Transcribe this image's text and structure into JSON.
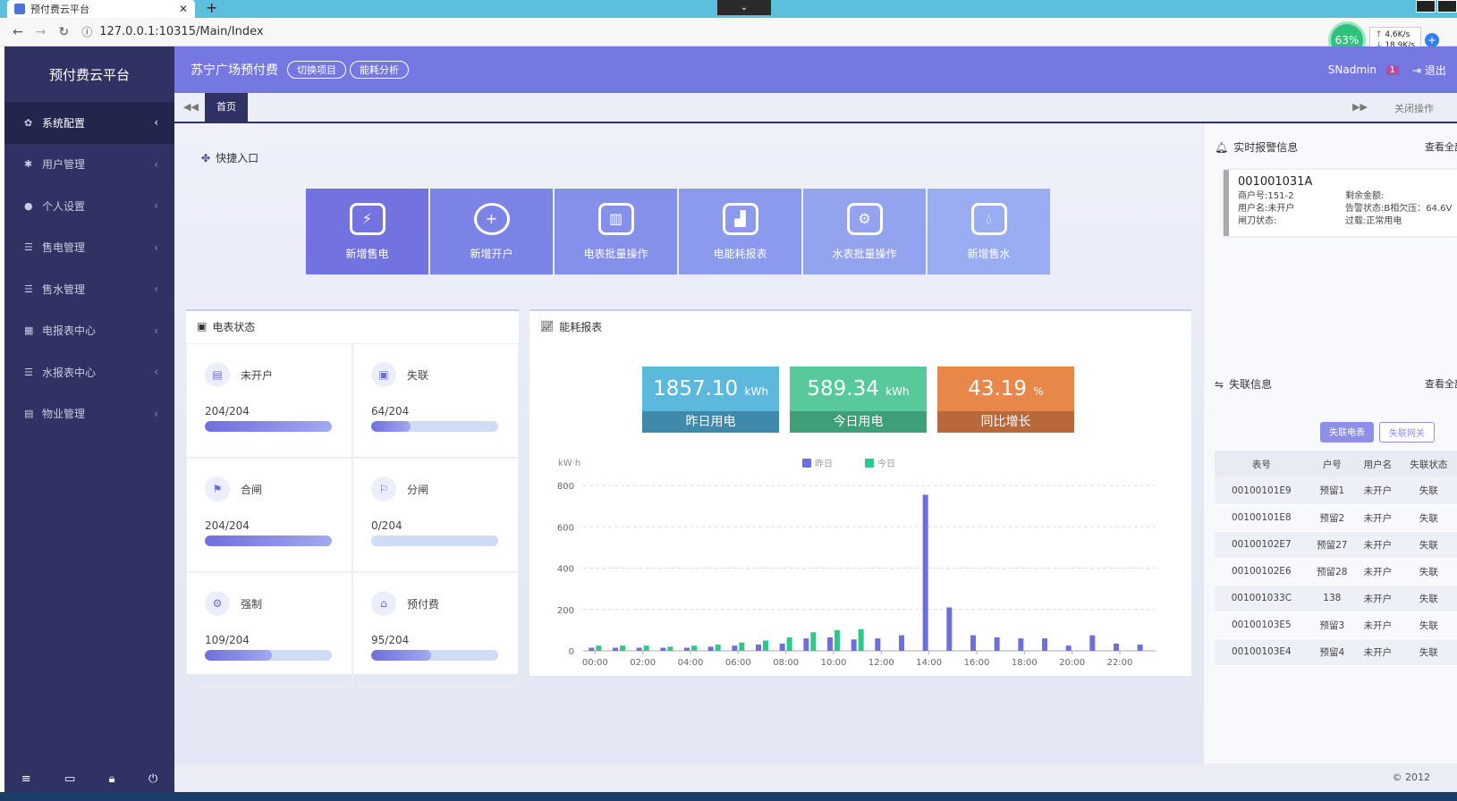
{
  "browser": {
    "tab_title": "预付费云平台",
    "url": "127.0.0.1:10315/Main/Index",
    "net_percent": "63%",
    "up_speed": "4.6K/s",
    "down_speed": "18.9K/s"
  },
  "sidebar": {
    "brand": "预付费云平台",
    "items": [
      {
        "label": "系统配置",
        "icon": "gear-icon"
      },
      {
        "label": "用户管理",
        "icon": "asterisk-icon"
      },
      {
        "label": "个人设置",
        "icon": "user-icon"
      },
      {
        "label": "售电管理",
        "icon": "list-icon"
      },
      {
        "label": "售水管理",
        "icon": "list-icon"
      },
      {
        "label": "电报表中心",
        "icon": "grid-icon"
      },
      {
        "label": "水报表中心",
        "icon": "list-icon"
      },
      {
        "label": "物业管理",
        "icon": "calendar-icon"
      }
    ]
  },
  "header": {
    "project": "苏宁广场预付费",
    "switch_btn": "切换项目",
    "energy_btn": "能耗分析",
    "user": "SNadmin",
    "badge": "1",
    "logout": "退出"
  },
  "pagetabs": {
    "home": "首页",
    "close_ops": "关闭操作"
  },
  "quick": {
    "title": "快捷入口",
    "tiles": [
      {
        "label": "新增售电",
        "color": "#7273e0"
      },
      {
        "label": "新增开户",
        "color": "#7b83e6"
      },
      {
        "label": "电表批量操作",
        "color": "#8590ea"
      },
      {
        "label": "电能耗报表",
        "color": "#8c9aee"
      },
      {
        "label": "水表批量操作",
        "color": "#93a3f0"
      },
      {
        "label": "新增售水",
        "color": "#9aacf2"
      }
    ]
  },
  "meter_status": {
    "title": "电表状态",
    "cells": [
      {
        "name": "未开户",
        "value": "204/204",
        "ratio": 1.0
      },
      {
        "name": "失联",
        "value": "64/204",
        "ratio": 0.31
      },
      {
        "name": "合闸",
        "value": "204/204",
        "ratio": 1.0
      },
      {
        "name": "分闸",
        "value": "0/204",
        "ratio": 0.0
      },
      {
        "name": "强制",
        "value": "109/204",
        "ratio": 0.53
      },
      {
        "name": "预付费",
        "value": "95/204",
        "ratio": 0.47
      }
    ]
  },
  "energy": {
    "title": "能耗报表",
    "kpis": [
      {
        "value": "1857.10",
        "unit": "kWh",
        "label": "昨日用电",
        "color": "#5cb8dc",
        "bar": "#3f8aab"
      },
      {
        "value": "589.34",
        "unit": "kWh",
        "label": "今日用电",
        "color": "#57c99b",
        "bar": "#3e9f78"
      },
      {
        "value": "43.19",
        "unit": "%",
        "label": "同比增长",
        "color": "#e8874a",
        "bar": "#b8683a"
      }
    ]
  },
  "chart_data": {
    "type": "bar",
    "ylabel": "kW·h",
    "ylim": [
      0,
      800
    ],
    "yticks": [
      "0",
      "200",
      "400",
      "600",
      "800"
    ],
    "categories": [
      "00:00",
      "01:00",
      "02:00",
      "03:00",
      "04:00",
      "05:00",
      "06:00",
      "07:00",
      "08:00",
      "09:00",
      "10:00",
      "11:00",
      "12:00",
      "13:00",
      "14:00",
      "15:00",
      "16:00",
      "17:00",
      "18:00",
      "19:00",
      "20:00",
      "21:00",
      "22:00",
      "23:00"
    ],
    "xticks": [
      "00:00",
      "02:00",
      "04:00",
      "06:00",
      "08:00",
      "10:00",
      "12:00",
      "14:00",
      "16:00",
      "18:00",
      "20:00",
      "22:00"
    ],
    "series": [
      {
        "name": "昨日",
        "color": "#6c6fdc",
        "values": [
          15,
          15,
          15,
          15,
          15,
          20,
          25,
          30,
          35,
          60,
          65,
          55,
          60,
          75,
          755,
          210,
          75,
          65,
          60,
          60,
          25,
          75,
          35,
          30
        ]
      },
      {
        "name": "今日",
        "color": "#2ec98a",
        "values": [
          25,
          25,
          25,
          20,
          25,
          30,
          40,
          50,
          65,
          90,
          100,
          105,
          null,
          null,
          null,
          null,
          null,
          null,
          null,
          null,
          null,
          null,
          null,
          null
        ]
      }
    ],
    "legend": "top-center"
  },
  "alarm": {
    "title": "实时报警信息",
    "more": "查看全部",
    "meter": "001001031A",
    "shop_no": "商户号:151-2",
    "balance": "剩余金额:",
    "user_name": "用户名:未开户",
    "alarm_status": "告警状态:B相欠压：64.6V",
    "switch_status": "闸刀状态:",
    "overload": "过载:正常用电"
  },
  "lost": {
    "title": "失联信息",
    "more": "查看全部",
    "btn_meter": "失联电表",
    "btn_gateway": "失联网关",
    "headers": [
      "表号",
      "户号",
      "用户名",
      "失联状态"
    ],
    "rows": [
      [
        "00100101E9",
        "预留1",
        "未开户",
        "失联"
      ],
      [
        "00100101E8",
        "预留2",
        "未开户",
        "失联"
      ],
      [
        "00100102E7",
        "预留27",
        "未开户",
        "失联"
      ],
      [
        "00100102E6",
        "预留28",
        "未开户",
        "失联"
      ],
      [
        "001001033C",
        "138",
        "未开户",
        "失联"
      ],
      [
        "00100103E5",
        "预留3",
        "未开户",
        "失联"
      ],
      [
        "00100103E4",
        "预留4",
        "未开户",
        "失联"
      ]
    ]
  },
  "footer": {
    "copy": "© 2012"
  }
}
